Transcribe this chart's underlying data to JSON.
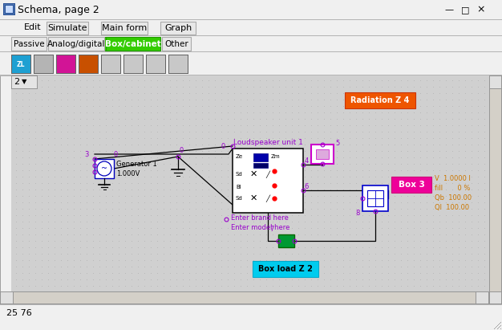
{
  "title": "Schema, page 2",
  "status_bar": "25 76",
  "menu_items": [
    "Edit",
    "Simulate",
    "Main form",
    "Graph"
  ],
  "tab_items": [
    "Passive",
    "Analog/digital",
    "Box/cabinet",
    "Other"
  ],
  "active_tab": "Box/cabinet",
  "active_tab_color": "#33cc00",
  "toolbar_btn_colors": [
    "#22aadd",
    "#c0c0c0",
    "#dd11aa",
    "#cc5500",
    "#c8c8c8",
    "#c8c8c8",
    "#c8c8c8",
    "#c8c8c8"
  ],
  "canvas_bg": "#d0d0d0",
  "dot_color": "#c0bfbf",
  "radiation_color": "#ee5500",
  "boxload_color": "#00ccee",
  "box3_color": "#ee0099",
  "box3_info_color": "#cc7700",
  "node_color": "#9900cc",
  "wire_color": "#000000",
  "lsp_border": "#000000",
  "gen_border": "#0000cc"
}
